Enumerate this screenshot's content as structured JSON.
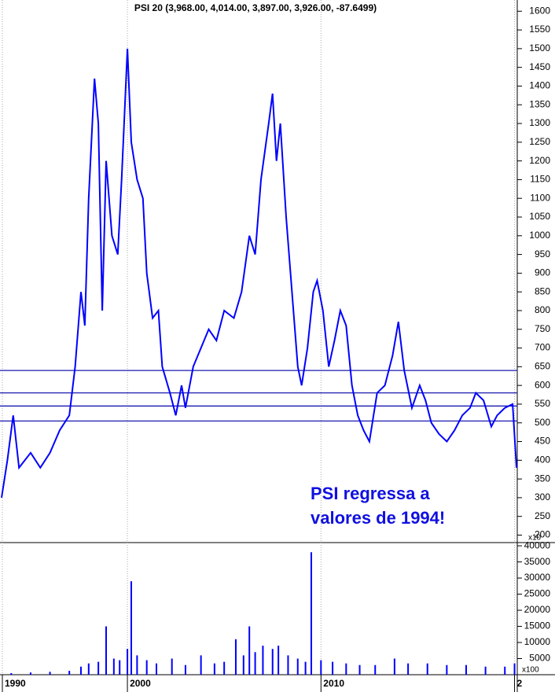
{
  "chart_data": [
    {
      "type": "line",
      "title": "PSI 20 (3,968.00, 4,014.00, 3,897.00, 3,926.00, -87.6499)",
      "annotation": "PSI regressa a valores de 1994!",
      "axis_multiplier": "x10",
      "x": [
        1993.5,
        1993.8,
        1994.1,
        1994.4,
        1995.0,
        1995.5,
        1996.0,
        1996.5,
        1997.0,
        1997.3,
        1997.6,
        1997.8,
        1998.0,
        1998.3,
        1998.5,
        1998.7,
        1998.9,
        1999.2,
        1999.5,
        1999.7,
        2000.0,
        2000.2,
        2000.5,
        2000.8,
        2001.0,
        2001.3,
        2001.6,
        2001.8,
        2002.2,
        2002.5,
        2002.8,
        2003.0,
        2003.4,
        2003.8,
        2004.2,
        2004.6,
        2005.0,
        2005.5,
        2005.9,
        2006.3,
        2006.6,
        2006.9,
        2007.3,
        2007.5,
        2007.7,
        2007.9,
        2008.2,
        2008.5,
        2008.8,
        2009.0,
        2009.3,
        2009.6,
        2009.8,
        2010.1,
        2010.4,
        2010.7,
        2011.0,
        2011.3,
        2011.6,
        2011.9,
        2012.2,
        2012.5,
        2012.9,
        2013.3,
        2013.7,
        2014.0,
        2014.3,
        2014.7,
        2015.1,
        2015.4,
        2015.7,
        2016.1,
        2016.5,
        2016.9,
        2017.3,
        2017.7,
        2018.0,
        2018.4,
        2018.8,
        2019.1,
        2019.5,
        2019.9,
        2020.1
      ],
      "series": [
        {
          "name": "PSI 20",
          "color": "#0000ff",
          "values": [
            300,
            400,
            520,
            380,
            420,
            380,
            420,
            480,
            520,
            650,
            850,
            760,
            1100,
            1420,
            1300,
            800,
            1200,
            1000,
            950,
            1150,
            1500,
            1250,
            1150,
            1100,
            900,
            780,
            800,
            650,
            580,
            520,
            600,
            540,
            650,
            700,
            750,
            720,
            800,
            780,
            850,
            1000,
            950,
            1150,
            1300,
            1380,
            1200,
            1300,
            1050,
            850,
            650,
            600,
            700,
            850,
            880,
            800,
            650,
            720,
            800,
            760,
            600,
            520,
            480,
            450,
            580,
            600,
            680,
            770,
            640,
            540,
            600,
            560,
            500,
            470,
            450,
            480,
            520,
            540,
            580,
            560,
            490,
            520,
            540,
            550,
            380
          ]
        }
      ],
      "levels": [
        640,
        580,
        545,
        505
      ],
      "xlim": [
        1993.54,
        2020.1
      ],
      "xticks": [
        {
          "value": 1993.54,
          "label": "1990"
        },
        2000,
        2010,
        {
          "value": 2020,
          "label": "2"
        }
      ],
      "ylim": [
        180,
        1630
      ],
      "yticks": [
        200,
        250,
        300,
        350,
        400,
        450,
        500,
        550,
        600,
        650,
        700,
        750,
        800,
        850,
        900,
        950,
        1000,
        1050,
        1100,
        1150,
        1200,
        1250,
        1300,
        1350,
        1400,
        1450,
        1500,
        1550,
        1600
      ]
    },
    {
      "type": "bar",
      "axis_multiplier": "x100",
      "x": [
        1994.0,
        1995.0,
        1996.0,
        1997.0,
        1997.6,
        1998.0,
        1998.5,
        1998.9,
        1999.3,
        1999.6,
        2000.0,
        2000.2,
        2000.5,
        2001.0,
        2001.5,
        2002.3,
        2003.0,
        2003.8,
        2004.5,
        2005.0,
        2005.6,
        2006.0,
        2006.3,
        2006.6,
        2007.0,
        2007.5,
        2007.8,
        2008.3,
        2008.8,
        2009.2,
        2009.5,
        2010.0,
        2010.6,
        2011.3,
        2012.0,
        2012.8,
        2013.8,
        2014.5,
        2015.5,
        2016.5,
        2017.5,
        2018.5,
        2019.5,
        2020.0
      ],
      "values": [
        500,
        700,
        900,
        1200,
        2500,
        3500,
        4000,
        15000,
        5000,
        4500,
        8000,
        29000,
        6000,
        4500,
        3500,
        5000,
        3000,
        6000,
        3500,
        4000,
        11000,
        6000,
        15000,
        7000,
        9000,
        8000,
        9000,
        6000,
        5000,
        4000,
        38000,
        4500,
        4000,
        3500,
        3000,
        3000,
        5000,
        3500,
        3500,
        3000,
        3000,
        2500,
        2500,
        3500
      ],
      "color": "#0000ff",
      "ylim": [
        0,
        41000
      ],
      "yticks": [
        5000,
        10000,
        15000,
        20000,
        25000,
        30000,
        35000,
        40000
      ]
    }
  ]
}
